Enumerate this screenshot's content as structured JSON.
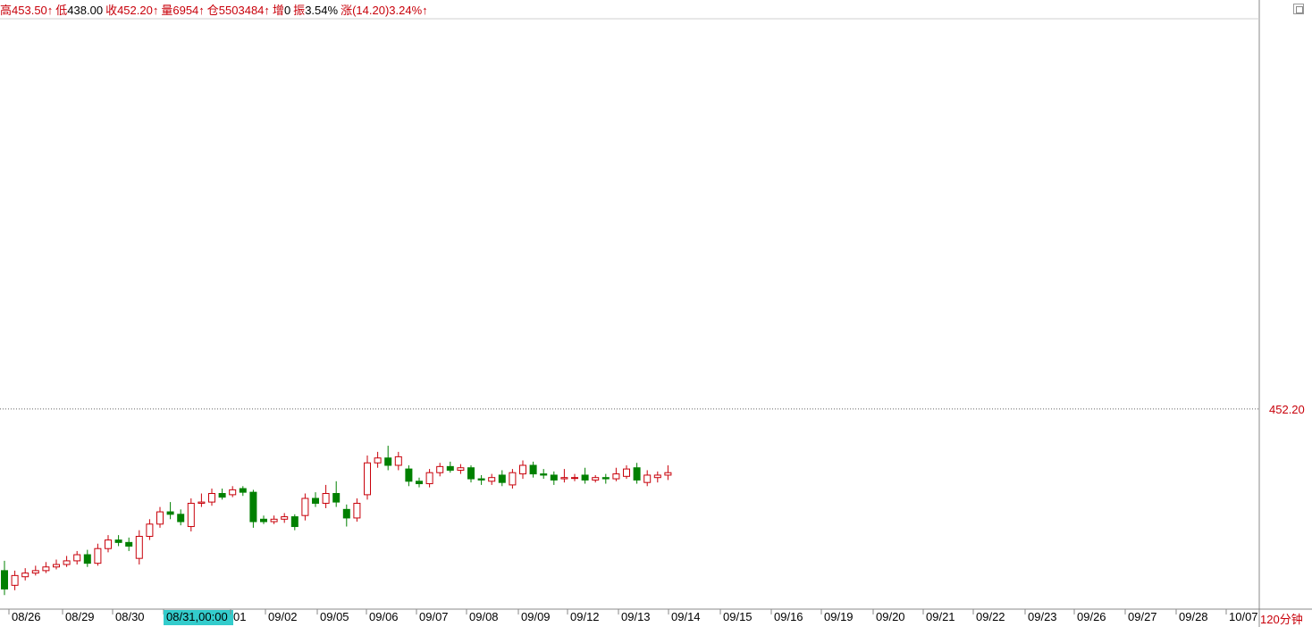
{
  "info_bar": [
    {
      "label": "高",
      "value": "453.50↑",
      "color": "red"
    },
    {
      "label": "低",
      "value": "438.00",
      "color": "black"
    },
    {
      "label": "收",
      "value": "452.20↑",
      "color": "red"
    },
    {
      "label": "量",
      "value": "6954↑",
      "color": "red"
    },
    {
      "label": "仓",
      "value": "5503484↑",
      "color": "red"
    },
    {
      "label": "增",
      "value": "0",
      "color": "black"
    },
    {
      "label": "振",
      "value": "3.54%",
      "color": "black"
    },
    {
      "label": "涨",
      "value": "(14.20)3.24%↑",
      "color": "red"
    }
  ],
  "period_label": "120分钟",
  "colors": {
    "up": "#c8000a",
    "down": "#008000",
    "grid": "#c8c8c8",
    "highlight": "#1e90e0",
    "cursor_bg": "#33cccc",
    "axis_text": "#000000",
    "price_text": "#c8000a"
  },
  "chart_data": {
    "type": "candlestick",
    "title": "",
    "ylim": [
      436,
      484
    ],
    "date_ticks": [
      "08/26",
      "08/29",
      "08/30",
      "08/31,00:00",
      "01",
      "09/02",
      "09/05",
      "09/06",
      "09/07",
      "09/08",
      "09/09",
      "09/12",
      "09/13",
      "09/14",
      "09/15",
      "09/16",
      "09/19",
      "09/20",
      "09/21",
      "09/22",
      "09/23",
      "09/26",
      "09/27",
      "09/28",
      "10/07"
    ],
    "cursor_date": "08/31,00:00",
    "candles": [
      {
        "o": 439.0,
        "c": 437.5,
        "h": 439.8,
        "l": 437.0
      },
      {
        "o": 437.8,
        "c": 438.6,
        "h": 439.0,
        "l": 437.4
      },
      {
        "o": 438.5,
        "c": 438.8,
        "h": 439.2,
        "l": 438.2
      },
      {
        "o": 438.8,
        "c": 439.0,
        "h": 439.4,
        "l": 438.6
      },
      {
        "o": 439.0,
        "c": 439.3,
        "h": 439.7,
        "l": 438.8
      },
      {
        "o": 439.3,
        "c": 439.5,
        "h": 439.9,
        "l": 439.1
      },
      {
        "o": 439.5,
        "c": 439.8,
        "h": 440.2,
        "l": 439.3
      },
      {
        "o": 439.8,
        "c": 440.3,
        "h": 440.6,
        "l": 439.5
      },
      {
        "o": 440.3,
        "c": 439.6,
        "h": 440.7,
        "l": 439.3
      },
      {
        "o": 439.6,
        "c": 440.8,
        "h": 441.2,
        "l": 439.4
      },
      {
        "o": 440.8,
        "c": 441.5,
        "h": 441.9,
        "l": 440.5
      },
      {
        "o": 441.5,
        "c": 441.3,
        "h": 441.9,
        "l": 441.0
      },
      {
        "o": 441.3,
        "c": 441.0,
        "h": 441.7,
        "l": 440.6
      },
      {
        "o": 440.0,
        "c": 441.8,
        "h": 442.3,
        "l": 439.5
      },
      {
        "o": 441.8,
        "c": 442.8,
        "h": 443.2,
        "l": 441.5
      },
      {
        "o": 442.8,
        "c": 443.8,
        "h": 444.2,
        "l": 442.5
      },
      {
        "o": 443.8,
        "c": 443.6,
        "h": 444.6,
        "l": 443.2
      },
      {
        "o": 443.6,
        "c": 443.0,
        "h": 444.0,
        "l": 442.7
      },
      {
        "o": 442.6,
        "c": 444.5,
        "h": 444.9,
        "l": 442.2
      },
      {
        "o": 444.5,
        "c": 444.6,
        "h": 445.3,
        "l": 444.2
      },
      {
        "o": 444.6,
        "c": 445.3,
        "h": 445.7,
        "l": 444.3
      },
      {
        "o": 445.3,
        "c": 445.0,
        "h": 445.7,
        "l": 444.8
      },
      {
        "o": 445.2,
        "c": 445.6,
        "h": 445.9,
        "l": 445.0
      },
      {
        "o": 445.7,
        "c": 445.4,
        "h": 445.9,
        "l": 445.1
      },
      {
        "o": 445.4,
        "c": 443.0,
        "h": 445.6,
        "l": 442.5
      },
      {
        "o": 443.2,
        "c": 443.0,
        "h": 443.5,
        "l": 442.8
      },
      {
        "o": 443.0,
        "c": 443.2,
        "h": 443.5,
        "l": 442.8
      },
      {
        "o": 443.2,
        "c": 443.4,
        "h": 443.7,
        "l": 442.9
      },
      {
        "o": 443.4,
        "c": 442.6,
        "h": 443.6,
        "l": 442.3
      },
      {
        "o": 443.5,
        "c": 444.9,
        "h": 445.3,
        "l": 443.1
      },
      {
        "o": 444.9,
        "c": 444.5,
        "h": 445.4,
        "l": 444.2
      },
      {
        "o": 444.5,
        "c": 445.3,
        "h": 446.0,
        "l": 444.1
      },
      {
        "o": 445.3,
        "c": 444.6,
        "h": 446.3,
        "l": 444.2
      },
      {
        "o": 444.0,
        "c": 443.3,
        "h": 444.4,
        "l": 442.6
      },
      {
        "o": 443.3,
        "c": 444.5,
        "h": 444.9,
        "l": 443.0
      },
      {
        "o": 445.2,
        "c": 447.8,
        "h": 448.4,
        "l": 444.8
      },
      {
        "o": 447.8,
        "c": 448.2,
        "h": 448.7,
        "l": 447.4
      },
      {
        "o": 448.2,
        "c": 447.6,
        "h": 449.2,
        "l": 447.2
      },
      {
        "o": 447.6,
        "c": 448.3,
        "h": 448.7,
        "l": 447.2
      },
      {
        "o": 447.3,
        "c": 446.3,
        "h": 447.6,
        "l": 445.9
      },
      {
        "o": 446.3,
        "c": 446.1,
        "h": 446.6,
        "l": 445.8
      },
      {
        "o": 446.1,
        "c": 447.0,
        "h": 447.3,
        "l": 445.8
      },
      {
        "o": 447.0,
        "c": 447.5,
        "h": 447.8,
        "l": 446.7
      },
      {
        "o": 447.5,
        "c": 447.2,
        "h": 447.9,
        "l": 447.0
      },
      {
        "o": 447.2,
        "c": 447.4,
        "h": 447.7,
        "l": 446.9
      },
      {
        "o": 447.4,
        "c": 446.5,
        "h": 447.6,
        "l": 446.2
      },
      {
        "o": 446.5,
        "c": 446.4,
        "h": 446.8,
        "l": 446.0
      },
      {
        "o": 446.3,
        "c": 446.6,
        "h": 446.9,
        "l": 446.0
      },
      {
        "o": 446.8,
        "c": 446.2,
        "h": 447.2,
        "l": 445.9
      },
      {
        "o": 446.0,
        "c": 447.0,
        "h": 447.3,
        "l": 445.7
      },
      {
        "o": 446.9,
        "c": 447.6,
        "h": 448.0,
        "l": 446.5
      },
      {
        "o": 447.6,
        "c": 446.9,
        "h": 447.9,
        "l": 446.6
      },
      {
        "o": 446.9,
        "c": 446.8,
        "h": 447.3,
        "l": 446.5
      },
      {
        "o": 446.8,
        "c": 446.4,
        "h": 447.1,
        "l": 446.0
      },
      {
        "o": 446.5,
        "c": 446.6,
        "h": 447.3,
        "l": 446.2
      },
      {
        "o": 446.6,
        "c": 446.6,
        "h": 446.9,
        "l": 446.3
      },
      {
        "o": 446.8,
        "c": 446.4,
        "h": 447.4,
        "l": 446.1
      },
      {
        "o": 446.4,
        "c": 446.6,
        "h": 446.8,
        "l": 446.2
      },
      {
        "o": 446.6,
        "c": 446.5,
        "h": 446.9,
        "l": 446.1
      },
      {
        "o": 446.5,
        "c": 446.9,
        "h": 447.4,
        "l": 446.3
      },
      {
        "o": 446.7,
        "c": 447.3,
        "h": 447.6,
        "l": 446.5
      },
      {
        "o": 447.4,
        "c": 446.4,
        "h": 447.8,
        "l": 446.1
      },
      {
        "o": 446.2,
        "c": 446.8,
        "h": 447.2,
        "l": 445.9
      },
      {
        "o": 446.6,
        "c": 446.8,
        "h": 447.1,
        "l": 446.2
      },
      {
        "o": 446.8,
        "c": 447.0,
        "h": 447.6,
        "l": 446.4
      }
    ]
  }
}
